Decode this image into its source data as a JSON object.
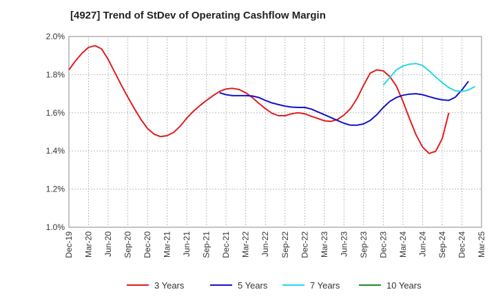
{
  "chart_data": {
    "type": "line",
    "title": "[4927]  Trend of StDev of Operating Cashflow Margin",
    "xlabel": "",
    "ylabel": "",
    "ylim": [
      1.0,
      2.0
    ],
    "yticks": [
      "1.0%",
      "1.2%",
      "1.4%",
      "1.6%",
      "1.8%",
      "2.0%"
    ],
    "x_tick_labels": [
      "Dec-19",
      "Mar-20",
      "Jun-20",
      "Sep-20",
      "Dec-20",
      "Mar-21",
      "Jun-21",
      "Sep-21",
      "Dec-21",
      "Mar-22",
      "Jun-22",
      "Sep-22",
      "Dec-22",
      "Mar-23",
      "Jun-23",
      "Sep-23",
      "Dec-23",
      "Mar-24",
      "Jun-24",
      "Sep-24",
      "Dec-24",
      "Mar-25"
    ],
    "grid": true,
    "legend_position": "bottom",
    "series": [
      {
        "name": "3 Years",
        "color": "#e31a1c",
        "start": "Dec-19",
        "values": [
          1.825,
          1.872,
          1.912,
          1.943,
          1.952,
          1.935,
          1.88,
          1.812,
          1.745,
          1.682,
          1.622,
          1.565,
          1.518,
          1.488,
          1.475,
          1.48,
          1.498,
          1.53,
          1.572,
          1.608,
          1.638,
          1.665,
          1.69,
          1.712,
          1.725,
          1.728,
          1.722,
          1.705,
          1.68,
          1.65,
          1.622,
          1.598,
          1.585,
          1.585,
          1.595,
          1.6,
          1.595,
          1.582,
          1.57,
          1.558,
          1.555,
          1.565,
          1.588,
          1.622,
          1.675,
          1.745,
          1.808,
          1.825,
          1.82,
          1.79,
          1.74,
          1.66,
          1.57,
          1.485,
          1.42,
          1.387,
          1.398,
          1.465,
          1.6
        ]
      },
      {
        "name": "5 Years",
        "color": "#1010cc",
        "start": "Nov-21",
        "values": [
          1.705,
          1.695,
          1.69,
          1.69,
          1.69,
          1.688,
          1.68,
          1.665,
          1.652,
          1.643,
          1.635,
          1.63,
          1.628,
          1.628,
          1.62,
          1.605,
          1.59,
          1.575,
          1.56,
          1.545,
          1.535,
          1.535,
          1.542,
          1.56,
          1.59,
          1.628,
          1.66,
          1.68,
          1.692,
          1.698,
          1.7,
          1.695,
          1.685,
          1.675,
          1.668,
          1.665,
          1.682,
          1.72,
          1.765
        ]
      },
      {
        "name": "7 Years",
        "color": "#22d8e8",
        "start": "Dec-23",
        "values": [
          1.745,
          1.785,
          1.825,
          1.845,
          1.855,
          1.858,
          1.848,
          1.82,
          1.788,
          1.758,
          1.732,
          1.715,
          1.712,
          1.72,
          1.738
        ]
      },
      {
        "name": "10 Years",
        "color": "#1f8a1f",
        "start": "Dec-24",
        "values": []
      }
    ]
  }
}
